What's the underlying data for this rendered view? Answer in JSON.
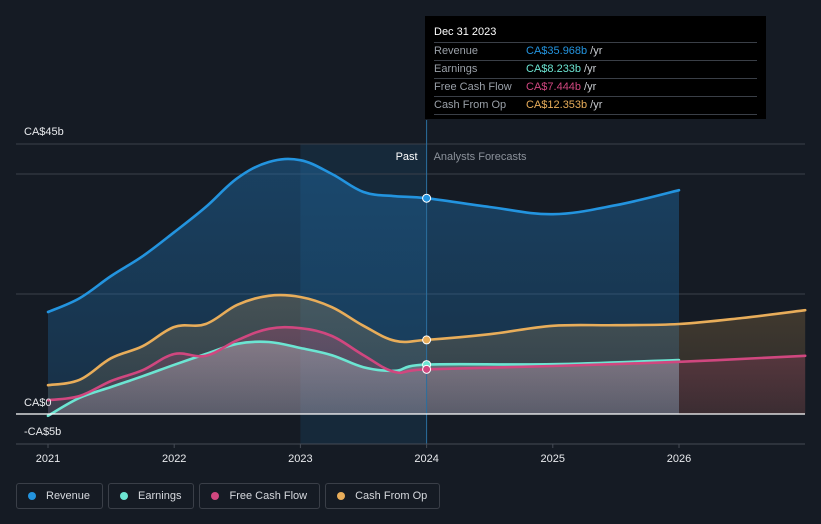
{
  "tooltip": {
    "date": "Dec 31 2023",
    "rows": [
      {
        "label": "Revenue",
        "value": "CA$35.968b",
        "unit": "/yr",
        "color": "#2394df"
      },
      {
        "label": "Earnings",
        "value": "CA$8.233b",
        "unit": "/yr",
        "color": "#6ce5d2"
      },
      {
        "label": "Free Cash Flow",
        "value": "CA$7.444b",
        "unit": "/yr",
        "color": "#d0477f"
      },
      {
        "label": "Cash From Op",
        "value": "CA$12.353b",
        "unit": "/yr",
        "color": "#e8ad5a"
      }
    ]
  },
  "legend": [
    {
      "label": "Revenue",
      "color": "#2394df"
    },
    {
      "label": "Earnings",
      "color": "#6ce5d2"
    },
    {
      "label": "Free Cash Flow",
      "color": "#d0477f"
    },
    {
      "label": "Cash From Op",
      "color": "#e8ad5a"
    }
  ],
  "chart_data": {
    "type": "line",
    "title": "",
    "xlabel": "",
    "ylabel": "",
    "currency_unit": "CA$ billions",
    "y_tick_labels": [
      {
        "value": 45,
        "label": "CA$45b"
      },
      {
        "value": 0,
        "label": "CA$0"
      },
      {
        "value": -5,
        "label": "-CA$5b"
      }
    ],
    "gridlines": [
      45,
      40,
      20,
      0,
      -5
    ],
    "ylim": [
      -5,
      45
    ],
    "xlim": [
      2020.75,
      2027.0
    ],
    "x_ticks": [
      2021,
      2022,
      2023,
      2024,
      2025,
      2026
    ],
    "x_tick_labels": [
      "2021",
      "2022",
      "2023",
      "2024",
      "2025",
      "2026"
    ],
    "regions": {
      "past_label": "Past",
      "forecast_label": "Analysts Forecasts",
      "highlight_from": 2023.0,
      "divider_at": 2024.0
    },
    "marker_x": 2024.0,
    "grid": true,
    "legend_position": "bottom-left",
    "series": [
      {
        "name": "Revenue",
        "color": "#2394df",
        "points": [
          [
            2021.0,
            17.0
          ],
          [
            2021.25,
            19.3
          ],
          [
            2021.5,
            23.0
          ],
          [
            2021.75,
            26.3
          ],
          [
            2022.0,
            30.3
          ],
          [
            2022.25,
            34.5
          ],
          [
            2022.5,
            39.3
          ],
          [
            2022.75,
            42.0
          ],
          [
            2023.0,
            42.3
          ],
          [
            2023.25,
            40.0
          ],
          [
            2023.5,
            37.0
          ],
          [
            2023.75,
            36.3
          ],
          [
            2024.0,
            35.968
          ],
          [
            2024.5,
            34.5
          ],
          [
            2025.0,
            33.3
          ],
          [
            2025.5,
            34.8
          ],
          [
            2026.0,
            37.3
          ]
        ]
      },
      {
        "name": "Cash From Op",
        "color": "#e8ad5a",
        "points": [
          [
            2021.0,
            4.8
          ],
          [
            2021.25,
            5.7
          ],
          [
            2021.5,
            9.3
          ],
          [
            2021.75,
            11.3
          ],
          [
            2022.0,
            14.5
          ],
          [
            2022.25,
            15.0
          ],
          [
            2022.5,
            18.2
          ],
          [
            2022.75,
            19.7
          ],
          [
            2023.0,
            19.5
          ],
          [
            2023.25,
            17.8
          ],
          [
            2023.5,
            14.7
          ],
          [
            2023.75,
            12.2
          ],
          [
            2024.0,
            12.353
          ],
          [
            2024.5,
            13.3
          ],
          [
            2025.0,
            14.7
          ],
          [
            2025.5,
            14.8
          ],
          [
            2026.0,
            15.0
          ],
          [
            2026.5,
            16.0
          ],
          [
            2027.0,
            17.3
          ]
        ]
      },
      {
        "name": "Free Cash Flow",
        "color": "#d0477f",
        "points": [
          [
            2021.0,
            2.3
          ],
          [
            2021.25,
            3.0
          ],
          [
            2021.5,
            5.5
          ],
          [
            2021.75,
            7.3
          ],
          [
            2022.0,
            10.0
          ],
          [
            2022.25,
            9.7
          ],
          [
            2022.5,
            12.3
          ],
          [
            2022.75,
            14.2
          ],
          [
            2023.0,
            14.3
          ],
          [
            2023.25,
            13.0
          ],
          [
            2023.5,
            9.8
          ],
          [
            2023.75,
            7.0
          ],
          [
            2024.0,
            7.444
          ],
          [
            2025.0,
            8.0
          ],
          [
            2026.0,
            8.7
          ],
          [
            2027.0,
            9.7
          ]
        ]
      },
      {
        "name": "Earnings",
        "color": "#6ce5d2",
        "points": [
          [
            2021.0,
            -0.3
          ],
          [
            2021.25,
            2.7
          ],
          [
            2021.5,
            4.5
          ],
          [
            2021.75,
            6.3
          ],
          [
            2022.0,
            8.2
          ],
          [
            2022.25,
            10.0
          ],
          [
            2022.5,
            11.7
          ],
          [
            2022.75,
            12.0
          ],
          [
            2023.0,
            11.0
          ],
          [
            2023.25,
            9.8
          ],
          [
            2023.5,
            7.8
          ],
          [
            2023.75,
            7.2
          ],
          [
            2024.0,
            8.233
          ],
          [
            2025.0,
            8.3
          ],
          [
            2026.0,
            9.0
          ]
        ]
      }
    ]
  }
}
